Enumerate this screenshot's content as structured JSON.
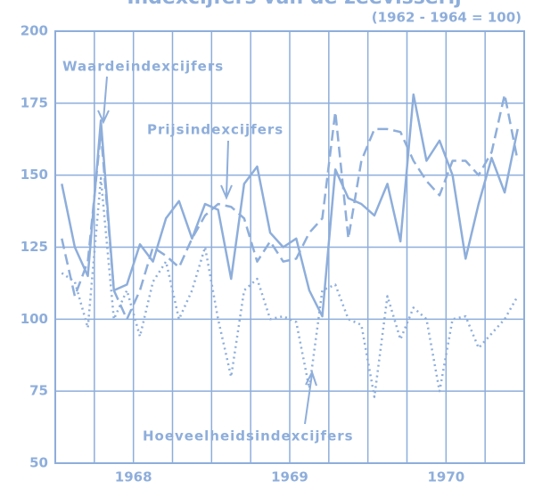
{
  "chart_data": {
    "type": "line",
    "title": "Indexcijfers van de zeevisserij",
    "subtitle": "(1962 - 1964 = 100)",
    "annotations": [
      "Waardeindexcijfers",
      "Prijsindexcijfers",
      "Hoeveelheidsindexcijfers"
    ],
    "xlim": [
      0,
      36
    ],
    "xticks": [
      0,
      3,
      6,
      9,
      12,
      15,
      18,
      21,
      24,
      27,
      30,
      33,
      36
    ],
    "year_labels": [
      {
        "value": 6,
        "label": "1968"
      },
      {
        "value": 18,
        "label": "1969"
      },
      {
        "value": 30,
        "label": "1970"
      }
    ],
    "ylim": [
      50,
      200
    ],
    "yticks": [
      50,
      75,
      100,
      125,
      150,
      175,
      200
    ],
    "grid": true,
    "series": [
      {
        "name": "Waardeindexcijfers",
        "color": "#8eaedb",
        "dash": "solid",
        "values": [
          147,
          125,
          115,
          169,
          110,
          112,
          126,
          120,
          135,
          141,
          128,
          140,
          138,
          114,
          147,
          153,
          130,
          125,
          128,
          110,
          101,
          152,
          142,
          140,
          136,
          147,
          127,
          178,
          155,
          162,
          150,
          121,
          140,
          156,
          144,
          166
        ]
      },
      {
        "name": "Prijsindexcijfers",
        "color": "#8eaedb",
        "dash": "dashed",
        "values": [
          128,
          108,
          120,
          165,
          110,
          100,
          110,
          125,
          122,
          118,
          128,
          136,
          140,
          139,
          135,
          120,
          127,
          120,
          121,
          130,
          135,
          172,
          128,
          155,
          166,
          166,
          165,
          155,
          148,
          143,
          155,
          155,
          150,
          158,
          178,
          155
        ]
      },
      {
        "name": "Hoeveelheidsindexcijfers",
        "color": "#8eaedb",
        "dash": "dotted",
        "values": [
          116,
          113,
          97,
          149,
          100,
          110,
          94,
          113,
          120,
          100,
          110,
          125,
          100,
          80,
          110,
          114,
          100,
          101,
          99,
          76,
          110,
          112,
          100,
          98,
          73,
          108,
          93,
          104,
          100,
          75,
          100,
          101,
          90,
          95,
          100,
          108
        ]
      }
    ]
  }
}
